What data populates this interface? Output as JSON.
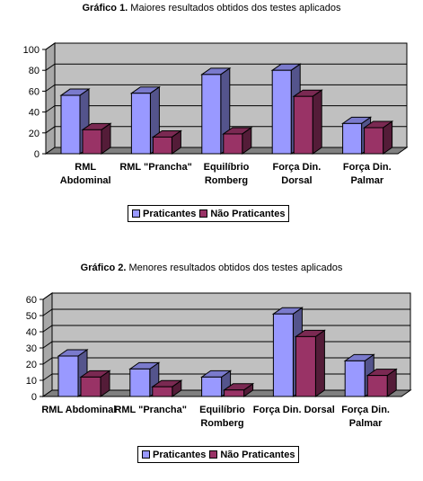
{
  "charts": [
    {
      "title_prefix": "Gráfico 1.",
      "title_rest": " Maiores resultados obtidos dos testes aplicados"
    },
    {
      "title_prefix": "Gráfico 2.",
      "title_rest": " Menores resultados obtidos dos testes aplicados"
    }
  ],
  "chart_data": [
    {
      "type": "bar",
      "categories": [
        [
          "RML",
          "Abdominal"
        ],
        [
          "RML \"Prancha\""
        ],
        [
          "Equilíbrio",
          "Romberg"
        ],
        [
          "Força Din.",
          "Dorsal"
        ],
        [
          "Força Din.",
          "Palmar"
        ]
      ],
      "series": [
        {
          "name": "Praticantes",
          "values": [
            56,
            58,
            76,
            80,
            29
          ],
          "color": "#9999ff"
        },
        {
          "name": "Não Praticantes",
          "values": [
            23,
            16,
            19,
            55,
            25
          ],
          "color": "#993366"
        }
      ],
      "ylim": [
        0,
        100
      ],
      "yticks": [
        "0",
        "20",
        "40",
        "60",
        "80",
        "100"
      ],
      "grid": true,
      "legend": "bottom"
    },
    {
      "type": "bar",
      "categories": [
        [
          "RML Abdominal"
        ],
        [
          "RML \"Prancha\""
        ],
        [
          "Equilíbrio",
          "Romberg"
        ],
        [
          "Força Din. Dorsal"
        ],
        [
          "Força Din.",
          "Palmar"
        ]
      ],
      "series": [
        {
          "name": "Praticantes",
          "values": [
            25,
            17,
            12,
            51,
            22
          ],
          "color": "#9999ff"
        },
        {
          "name": "Não Praticantes",
          "values": [
            12,
            6,
            4,
            37,
            13
          ],
          "color": "#993366"
        }
      ],
      "ylim": [
        0,
        60
      ],
      "yticks": [
        "0",
        "10",
        "20",
        "30",
        "40",
        "50",
        "60"
      ],
      "grid": true,
      "legend": "bottom"
    }
  ]
}
